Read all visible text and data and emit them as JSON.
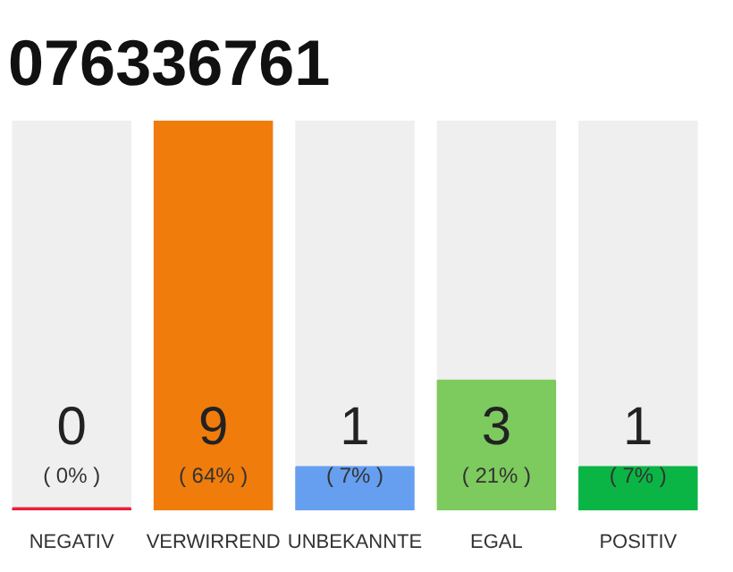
{
  "chart_data": {
    "type": "bar",
    "title": "076336761",
    "categories": [
      "NEGATIV",
      "VERWIRREND",
      "UNBEKANNTE",
      "EGAL",
      "POSITIV"
    ],
    "values": [
      0,
      9,
      1,
      3,
      1
    ],
    "colors": [
      "#e8213a",
      "#f07c0c",
      "#679ff0",
      "#7dca5e",
      "#0ab545"
    ],
    "ylim": [
      0,
      9
    ],
    "tick_labels": "x",
    "data_labels": true,
    "annotations": [
      "( 0% )",
      "( 64% )",
      "( 7% )",
      "( 21% )",
      "( 7% )"
    ]
  }
}
